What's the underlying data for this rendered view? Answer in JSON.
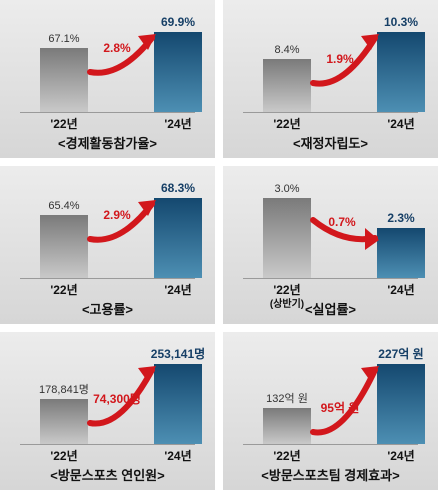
{
  "chart_data": [
    {
      "type": "bar",
      "title": "<경제활동참가율>",
      "categories": [
        "'22년",
        "'24년"
      ],
      "category_sublabels": [
        "",
        ""
      ],
      "values": [
        67.1,
        69.9
      ],
      "value_labels": [
        "67.1%",
        "69.9%"
      ],
      "change_label": "2.8%",
      "trend": "up"
    },
    {
      "type": "bar",
      "title": "<재정자립도>",
      "categories": [
        "'22년",
        "'24년"
      ],
      "category_sublabels": [
        "",
        ""
      ],
      "values": [
        8.4,
        10.3
      ],
      "value_labels": [
        "8.4%",
        "10.3%"
      ],
      "change_label": "1.9%",
      "trend": "up"
    },
    {
      "type": "bar",
      "title": "<고용률>",
      "categories": [
        "'22년",
        "'24년"
      ],
      "category_sublabels": [
        "",
        ""
      ],
      "values": [
        65.4,
        68.3
      ],
      "value_labels": [
        "65.4%",
        "68.3%"
      ],
      "change_label": "2.9%",
      "trend": "up"
    },
    {
      "type": "bar",
      "title": "<실업률>",
      "categories": [
        "'22년",
        "'24년"
      ],
      "category_sublabels": [
        "(상반기)",
        ""
      ],
      "values": [
        3.0,
        2.3
      ],
      "value_labels": [
        "3.0%",
        "2.3%"
      ],
      "change_label": "0.7%",
      "trend": "down"
    },
    {
      "type": "bar",
      "title": "<방문스포츠 연인원>",
      "categories": [
        "'22년",
        "'24년"
      ],
      "category_sublabels": [
        "",
        ""
      ],
      "values": [
        178841,
        253141
      ],
      "value_labels": [
        "178,841명",
        "253,141명"
      ],
      "change_label": "74,300명",
      "trend": "up"
    },
    {
      "type": "bar",
      "title": "<방문스포츠팀 경제효과>",
      "categories": [
        "'22년",
        "'24년"
      ],
      "category_sublabels": [
        "",
        ""
      ],
      "values": [
        132,
        227
      ],
      "value_labels": [
        "132억 원",
        "227억 원"
      ],
      "change_label": "95억 원",
      "trend": "up"
    }
  ],
  "colors": {
    "bar_old": "#8e8e8e",
    "bar_new": "#1b5f86",
    "bar_new_label": "#163f66",
    "arrow": "#d2171c",
    "text": "#111111"
  }
}
